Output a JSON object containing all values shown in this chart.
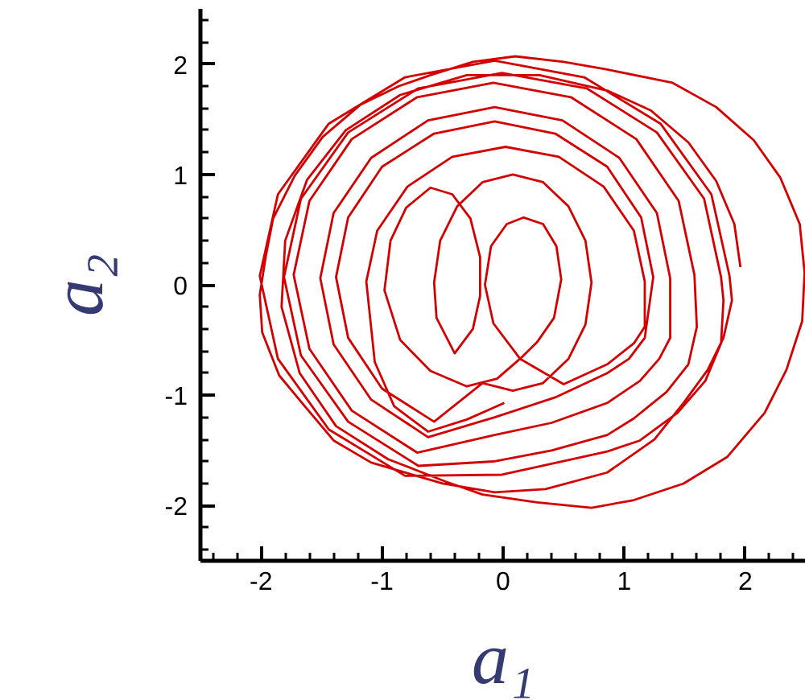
{
  "chart_data": {
    "type": "line",
    "xlabel": "a₁",
    "ylabel": "a₂",
    "xlim": [
      -2.5,
      2.5
    ],
    "ylim": [
      -2.5,
      2.5
    ],
    "xticks": [
      {
        "value": -2.4,
        "label": null
      },
      {
        "value": -2.2,
        "label": null
      },
      -2,
      {
        "value": -1.8,
        "label": null
      },
      {
        "value": -1.6,
        "label": null
      },
      {
        "value": -1.4,
        "label": null
      },
      {
        "value": -1.2,
        "label": null
      },
      -1,
      {
        "value": -0.8,
        "label": null
      },
      {
        "value": -0.6,
        "label": null
      },
      {
        "value": -0.4,
        "label": null
      },
      {
        "value": -0.2,
        "label": null
      },
      0,
      {
        "value": 0.2,
        "label": null
      },
      {
        "value": 0.4,
        "label": null
      },
      {
        "value": 0.6,
        "label": null
      },
      {
        "value": 0.8,
        "label": null
      },
      1,
      {
        "value": 1.2,
        "label": null
      },
      {
        "value": 1.4,
        "label": null
      },
      {
        "value": 1.6,
        "label": null
      },
      {
        "value": 1.8,
        "label": null
      },
      2,
      {
        "value": 2.2,
        "label": null
      },
      {
        "value": 2.4,
        "label": null
      }
    ],
    "yticks": [
      {
        "value": -2.4,
        "label": null
      },
      {
        "value": -2.2,
        "label": null
      },
      -2,
      {
        "value": -1.8,
        "label": null
      },
      {
        "value": -1.6,
        "label": null
      },
      {
        "value": -1.4,
        "label": null
      },
      {
        "value": -1.2,
        "label": null
      },
      -1,
      {
        "value": -0.8,
        "label": null
      },
      {
        "value": -0.6,
        "label": null
      },
      {
        "value": -0.4,
        "label": null
      },
      {
        "value": -0.2,
        "label": null
      },
      0,
      {
        "value": 0.2,
        "label": null
      },
      {
        "value": 0.4,
        "label": null
      },
      {
        "value": 0.6,
        "label": null
      },
      {
        "value": 0.8,
        "label": null
      },
      1,
      {
        "value": 1.2,
        "label": null
      },
      {
        "value": 1.4,
        "label": null
      },
      {
        "value": 1.6,
        "label": null
      },
      {
        "value": 1.8,
        "label": null
      },
      2,
      {
        "value": 2.2,
        "label": null
      },
      {
        "value": 2.4,
        "label": null
      }
    ],
    "grid": false,
    "line_style": "solid",
    "series": [
      {
        "color": "#d40000",
        "x": [
          0.01,
          -0.3,
          -0.62,
          -0.9,
          -1.06,
          -1.13,
          -1.04,
          -0.79,
          -0.42,
          0.02,
          0.46,
          0.83,
          1.08,
          1.17,
          1.17,
          1.08,
          0.86,
          0.5,
          0.14,
          -0.08,
          -0.15,
          -0.1,
          0.03,
          0.17,
          0.33,
          0.44,
          0.48,
          0.42,
          0.28,
          0.14,
          -0.05,
          -0.3,
          -0.6,
          -0.85,
          -0.98,
          -0.93,
          -0.8,
          -0.6,
          -0.42,
          -0.27,
          -0.19,
          -0.19,
          -0.25,
          -0.4,
          -0.55,
          -0.57,
          -0.52,
          -0.38,
          -0.17,
          0.08,
          0.33,
          0.54,
          0.68,
          0.73,
          0.68,
          0.54,
          0.33,
          0.08,
          -0.17,
          -0.57,
          -1.0,
          -1.28,
          -1.38,
          -1.28,
          -1.0,
          -0.57,
          -0.07,
          0.43,
          0.86,
          1.14,
          1.24,
          1.17,
          1.04,
          0.86,
          0.43,
          -0.07,
          -0.62,
          -1.09,
          -1.4,
          -1.51,
          -1.4,
          -1.09,
          -0.62,
          -0.07,
          0.49,
          0.96,
          1.27,
          1.38,
          1.38,
          1.29,
          1.13,
          0.86,
          0.4,
          -0.07,
          -0.71,
          -1.25,
          -1.6,
          -1.73,
          -1.6,
          -1.25,
          -0.71,
          -0.08,
          0.56,
          1.1,
          1.45,
          1.58,
          1.6,
          1.53,
          1.35,
          1.08,
          0.86,
          0.4,
          -0.08,
          -0.7,
          -1.28,
          -1.67,
          -1.81,
          -1.67,
          -1.28,
          -0.7,
          -0.01,
          0.69,
          1.27,
          1.66,
          1.8,
          1.82,
          1.8,
          1.67,
          1.44,
          1.13,
          0.86,
          0.4,
          -0.01,
          -0.81,
          -1.44,
          -1.86,
          -2.01,
          -1.86,
          -1.44,
          -0.81,
          -0.07,
          0.67,
          1.3,
          1.72,
          1.87,
          1.89,
          1.82,
          1.69,
          1.49,
          1.25,
          0.86,
          0.35,
          -0.07,
          -0.5,
          -1.09,
          -1.4,
          -1.63,
          -1.85,
          -1.99,
          -2.01,
          -1.96,
          -1.9,
          -1.72,
          -1.49,
          -1.18,
          -0.86,
          -0.6,
          -0.25,
          0.1,
          0.5,
          0.86,
          1.4,
          1.76,
          2.07,
          2.29,
          2.45,
          2.49,
          2.47,
          2.34,
          2.16,
          1.85,
          1.49,
          1.08,
          0.73,
          0.28,
          -0.17,
          -0.48,
          -0.95,
          -1.38,
          -1.68,
          -1.83,
          -1.8,
          -1.62,
          -1.3,
          -0.85,
          -0.3,
          0.3,
          0.86,
          1.22,
          1.53,
          1.76,
          1.91,
          1.96
        ],
        "values": [
          -1.07,
          -1.22,
          -1.33,
          -1.1,
          -0.7,
          0.03,
          0.49,
          0.89,
          1.16,
          1.25,
          1.16,
          0.89,
          0.49,
          0.03,
          -0.38,
          -0.53,
          -0.72,
          -0.9,
          -0.67,
          -0.35,
          0.0,
          0.35,
          0.55,
          0.61,
          0.55,
          0.35,
          0.05,
          -0.3,
          -0.52,
          -0.67,
          -0.85,
          -0.92,
          -0.78,
          -0.5,
          -0.05,
          0.4,
          0.7,
          0.88,
          0.82,
          0.6,
          0.25,
          -0.1,
          -0.4,
          -0.62,
          -0.3,
          0.02,
          0.4,
          0.71,
          0.93,
          1.0,
          0.93,
          0.71,
          0.4,
          0.02,
          -0.36,
          -0.67,
          -0.89,
          -0.96,
          -0.89,
          -1.24,
          -0.94,
          -0.48,
          0.07,
          0.61,
          1.07,
          1.37,
          1.48,
          1.37,
          1.07,
          0.61,
          0.07,
          -0.48,
          -0.67,
          -0.8,
          -1.02,
          -1.2,
          -1.38,
          -1.04,
          -0.54,
          0.06,
          0.65,
          1.15,
          1.49,
          1.61,
          1.49,
          1.15,
          0.65,
          0.06,
          -0.48,
          -0.67,
          -0.87,
          -1.07,
          -1.25,
          -1.36,
          -1.52,
          -1.14,
          -0.58,
          0.09,
          0.76,
          1.32,
          1.7,
          1.83,
          1.7,
          1.32,
          0.76,
          0.09,
          -0.38,
          -0.72,
          -0.97,
          -1.21,
          -1.36,
          -1.5,
          -1.6,
          -1.64,
          -1.24,
          -0.64,
          0.07,
          0.78,
          1.38,
          1.78,
          1.92,
          1.78,
          1.38,
          0.78,
          0.07,
          -0.14,
          -0.53,
          -0.87,
          -1.16,
          -1.41,
          -1.51,
          -1.62,
          -1.72,
          -1.73,
          -1.31,
          -0.67,
          0.08,
          0.82,
          1.46,
          1.88,
          2.03,
          1.88,
          1.46,
          0.82,
          0.08,
          -0.14,
          -0.48,
          -0.77,
          -1.07,
          -1.4,
          -1.7,
          -1.85,
          -1.88,
          -1.8,
          -1.61,
          -1.41,
          -1.11,
          -0.82,
          -0.43,
          -0.09,
          0.26,
          0.6,
          0.99,
          1.34,
          1.63,
          1.8,
          1.9,
          2.02,
          2.07,
          2.02,
          1.95,
          1.83,
          1.61,
          1.31,
          0.97,
          0.55,
          0.11,
          -0.33,
          -0.77,
          -1.16,
          -1.56,
          -1.8,
          -1.95,
          -2.02,
          -1.97,
          -1.9,
          -1.78,
          -1.58,
          -1.28,
          -0.8,
          -0.2,
          0.4,
          0.95,
          1.4,
          1.72,
          1.9,
          1.9,
          1.76,
          1.58,
          1.29,
          0.94,
          0.55,
          0.16
        ]
      }
    ]
  }
}
